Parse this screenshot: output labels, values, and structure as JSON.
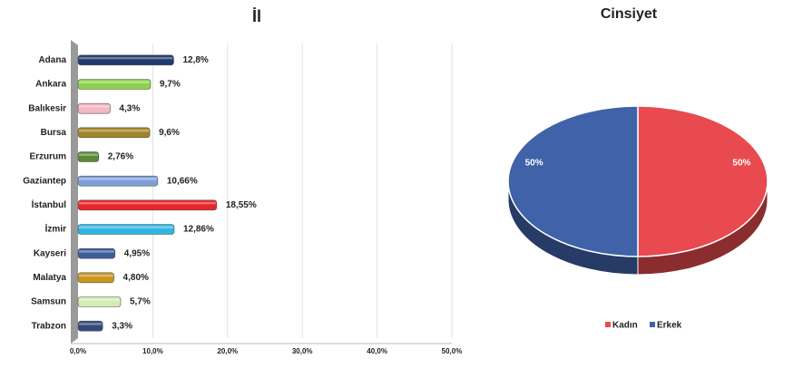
{
  "chart_data": [
    {
      "type": "bar",
      "title": "İl",
      "categories": [
        "Adana",
        "Ankara",
        "Balıkesir",
        "Bursa",
        "Erzurum",
        "Gaziantep",
        "İstanbul",
        "İzmir",
        "Kayseri",
        "Malatya",
        "Samsun",
        "Trabzon"
      ],
      "values": [
        12.8,
        9.7,
        4.3,
        9.6,
        2.76,
        10.66,
        18.55,
        12.86,
        4.95,
        4.8,
        5.7,
        3.3
      ],
      "value_labels": [
        "12,8%",
        "9,7%",
        "4,3%",
        "9,6%",
        "2,76%",
        "10,66%",
        "18,55%",
        "12,86%",
        "4,95%",
        "4,80%",
        "5,7%",
        "3,3%"
      ],
      "colors": [
        "#1f3a6e",
        "#8fd14f",
        "#f4b6c2",
        "#a08426",
        "#5a8a3a",
        "#7f9fd9",
        "#e8262a",
        "#2fb7e0",
        "#3f5d9c",
        "#c9961e",
        "#d4ecb4",
        "#34497a"
      ],
      "xlim": [
        0,
        50
      ],
      "xticks": [
        {
          "value": 0,
          "label": "0,0%"
        },
        {
          "value": 10,
          "label": "10,0%"
        },
        {
          "value": 20,
          "label": "20,0%"
        },
        {
          "value": 30,
          "label": "30,0%"
        },
        {
          "value": 40,
          "label": "40,0%"
        },
        {
          "value": 50,
          "label": "50,0%"
        }
      ],
      "grid": true
    },
    {
      "type": "pie",
      "title": "Cinsiyet",
      "categories": [
        "Kadın",
        "Erkek"
      ],
      "values": [
        50,
        50
      ],
      "value_labels": [
        "50%",
        "50%"
      ],
      "colors": [
        "#e84a4f",
        "#3f62a8"
      ],
      "legend": "bottom"
    }
  ]
}
